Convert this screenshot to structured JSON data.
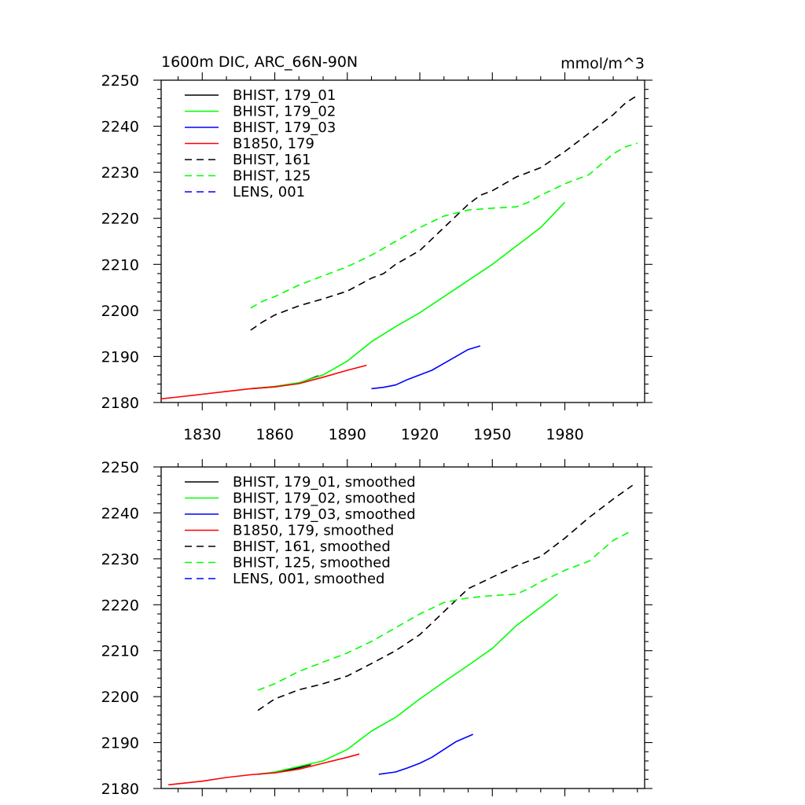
{
  "chart_data": [
    {
      "type": "line",
      "title": "1600m DIC, ARC_66N-90N",
      "units": "mmol/m^3",
      "xlim": [
        1813,
        2013
      ],
      "ylim": [
        2180,
        2250
      ],
      "xticks": [
        1830,
        1860,
        1890,
        1920,
        1950,
        1980
      ],
      "yticks": [
        2180,
        2190,
        2200,
        2210,
        2220,
        2230,
        2240,
        2250
      ],
      "show_x_tick_labels": true,
      "grid": false,
      "legend_position": "top-left",
      "series": [
        {
          "name": "BHIST, 179_01",
          "color": "#000000",
          "dash": "solid",
          "x": [
            1850,
            1860,
            1870,
            1878
          ],
          "y": [
            2183.0,
            2183.4,
            2184.2,
            2185.8
          ]
        },
        {
          "name": "BHIST, 179_02",
          "color": "#00ff00",
          "dash": "solid",
          "x": [
            1850,
            1860,
            1870,
            1880,
            1890,
            1900,
            1910,
            1920,
            1930,
            1940,
            1950,
            1960,
            1970,
            1980
          ],
          "y": [
            2183.0,
            2183.5,
            2184.3,
            2186.0,
            2189.0,
            2193.2,
            2196.5,
            2199.5,
            2203.0,
            2206.5,
            2210.0,
            2214.0,
            2218.0,
            2223.5
          ]
        },
        {
          "name": "BHIST, 179_03",
          "color": "#0000ff",
          "dash": "solid",
          "x": [
            1900,
            1905,
            1910,
            1915,
            1920,
            1925,
            1930,
            1935,
            1940,
            1945
          ],
          "y": [
            2183.0,
            2183.3,
            2183.8,
            2185.0,
            2186.0,
            2187.0,
            2188.5,
            2190.0,
            2191.5,
            2192.3
          ]
        },
        {
          "name": "B1850, 179",
          "color": "#ff0000",
          "dash": "solid",
          "x": [
            1813,
            1820,
            1830,
            1840,
            1850,
            1860,
            1870,
            1880,
            1890,
            1898
          ],
          "y": [
            2180.8,
            2181.2,
            2181.8,
            2182.4,
            2183.0,
            2183.4,
            2184.1,
            2185.5,
            2187.0,
            2188.1
          ]
        },
        {
          "name": "BHIST, 161",
          "color": "#000000",
          "dash": "dashed",
          "x": [
            1850,
            1855,
            1860,
            1870,
            1880,
            1890,
            1900,
            1905,
            1910,
            1920,
            1930,
            1940,
            1945,
            1950,
            1955,
            1960,
            1970,
            1980,
            1990,
            2000,
            2005,
            2010
          ],
          "y": [
            2195.7,
            2197.5,
            2199.0,
            2201.0,
            2202.5,
            2204.2,
            2207.0,
            2208.0,
            2210.0,
            2213.0,
            2218.0,
            2223.0,
            2225.0,
            2226.0,
            2227.5,
            2229.0,
            2231.0,
            2234.5,
            2238.5,
            2242.5,
            2245.0,
            2246.7
          ]
        },
        {
          "name": "BHIST, 125",
          "color": "#00ff00",
          "dash": "dashed",
          "x": [
            1850,
            1855,
            1860,
            1870,
            1880,
            1890,
            1900,
            1910,
            1920,
            1930,
            1940,
            1950,
            1960,
            1965,
            1970,
            1980,
            1990,
            2000,
            2005,
            2010
          ],
          "y": [
            2200.5,
            2202.0,
            2203.0,
            2205.5,
            2207.5,
            2209.5,
            2212.0,
            2215.0,
            2218.0,
            2220.5,
            2221.8,
            2222.2,
            2222.5,
            2223.5,
            2225.0,
            2227.5,
            2229.5,
            2234.0,
            2235.5,
            2236.3
          ]
        },
        {
          "name": "LENS, 001",
          "color": "#0000ff",
          "dash": "dashed",
          "x": [],
          "y": []
        }
      ]
    },
    {
      "type": "line",
      "title": "",
      "units": "",
      "xlim": [
        1813,
        2013
      ],
      "ylim": [
        2180,
        2250
      ],
      "xticks": [
        1830,
        1860,
        1890,
        1920,
        1950,
        1980
      ],
      "yticks": [
        2180,
        2190,
        2200,
        2210,
        2220,
        2230,
        2240,
        2250
      ],
      "show_x_tick_labels": false,
      "grid": false,
      "legend_position": "top-left",
      "series": [
        {
          "name": "BHIST, 179_01, smoothed",
          "color": "#000000",
          "dash": "solid",
          "x": [
            1853,
            1860,
            1870,
            1875
          ],
          "y": [
            2183.1,
            2183.5,
            2184.5,
            2185.2
          ]
        },
        {
          "name": "BHIST, 179_02, smoothed",
          "color": "#00ff00",
          "dash": "solid",
          "x": [
            1853,
            1860,
            1870,
            1880,
            1890,
            1900,
            1910,
            1920,
            1930,
            1940,
            1950,
            1960,
            1970,
            1977
          ],
          "y": [
            2183.1,
            2183.6,
            2184.8,
            2186.0,
            2188.5,
            2192.5,
            2195.5,
            2199.5,
            2203.2,
            2206.8,
            2210.5,
            2215.5,
            2219.5,
            2222.3
          ]
        },
        {
          "name": "BHIST, 179_03, smoothed",
          "color": "#0000ff",
          "dash": "solid",
          "x": [
            1903,
            1910,
            1915,
            1920,
            1925,
            1930,
            1935,
            1942
          ],
          "y": [
            2183.1,
            2183.6,
            2184.5,
            2185.5,
            2186.8,
            2188.5,
            2190.2,
            2191.8
          ]
        },
        {
          "name": "B1850, 179, smoothed",
          "color": "#ff0000",
          "dash": "solid",
          "x": [
            1816,
            1830,
            1840,
            1850,
            1860,
            1870,
            1880,
            1890,
            1895
          ],
          "y": [
            2180.8,
            2181.6,
            2182.4,
            2183.0,
            2183.4,
            2184.2,
            2185.5,
            2186.8,
            2187.5
          ]
        },
        {
          "name": "BHIST, 161, smoothed",
          "color": "#000000",
          "dash": "dashed",
          "x": [
            1853,
            1860,
            1870,
            1880,
            1890,
            1900,
            1910,
            1920,
            1930,
            1940,
            1950,
            1960,
            1970,
            1980,
            1990,
            2000,
            2008
          ],
          "y": [
            2197.0,
            2199.5,
            2201.5,
            2202.8,
            2204.5,
            2207.2,
            2210.0,
            2213.5,
            2218.5,
            2223.5,
            2226.0,
            2228.5,
            2230.5,
            2234.5,
            2239.0,
            2243.0,
            2246.0
          ]
        },
        {
          "name": "BHIST, 125, smoothed",
          "color": "#00ff00",
          "dash": "dashed",
          "x": [
            1853,
            1860,
            1870,
            1880,
            1890,
            1900,
            1910,
            1920,
            1930,
            1940,
            1950,
            1960,
            1965,
            1970,
            1980,
            1990,
            2000,
            2008
          ],
          "y": [
            2201.4,
            2202.8,
            2205.5,
            2207.5,
            2209.5,
            2212.0,
            2215.0,
            2218.0,
            2220.5,
            2221.5,
            2222.0,
            2222.3,
            2223.5,
            2225.0,
            2227.5,
            2229.5,
            2234.0,
            2236.2
          ]
        },
        {
          "name": "LENS, 001, smoothed",
          "color": "#0000ff",
          "dash": "dashed",
          "x": [],
          "y": []
        }
      ]
    }
  ]
}
